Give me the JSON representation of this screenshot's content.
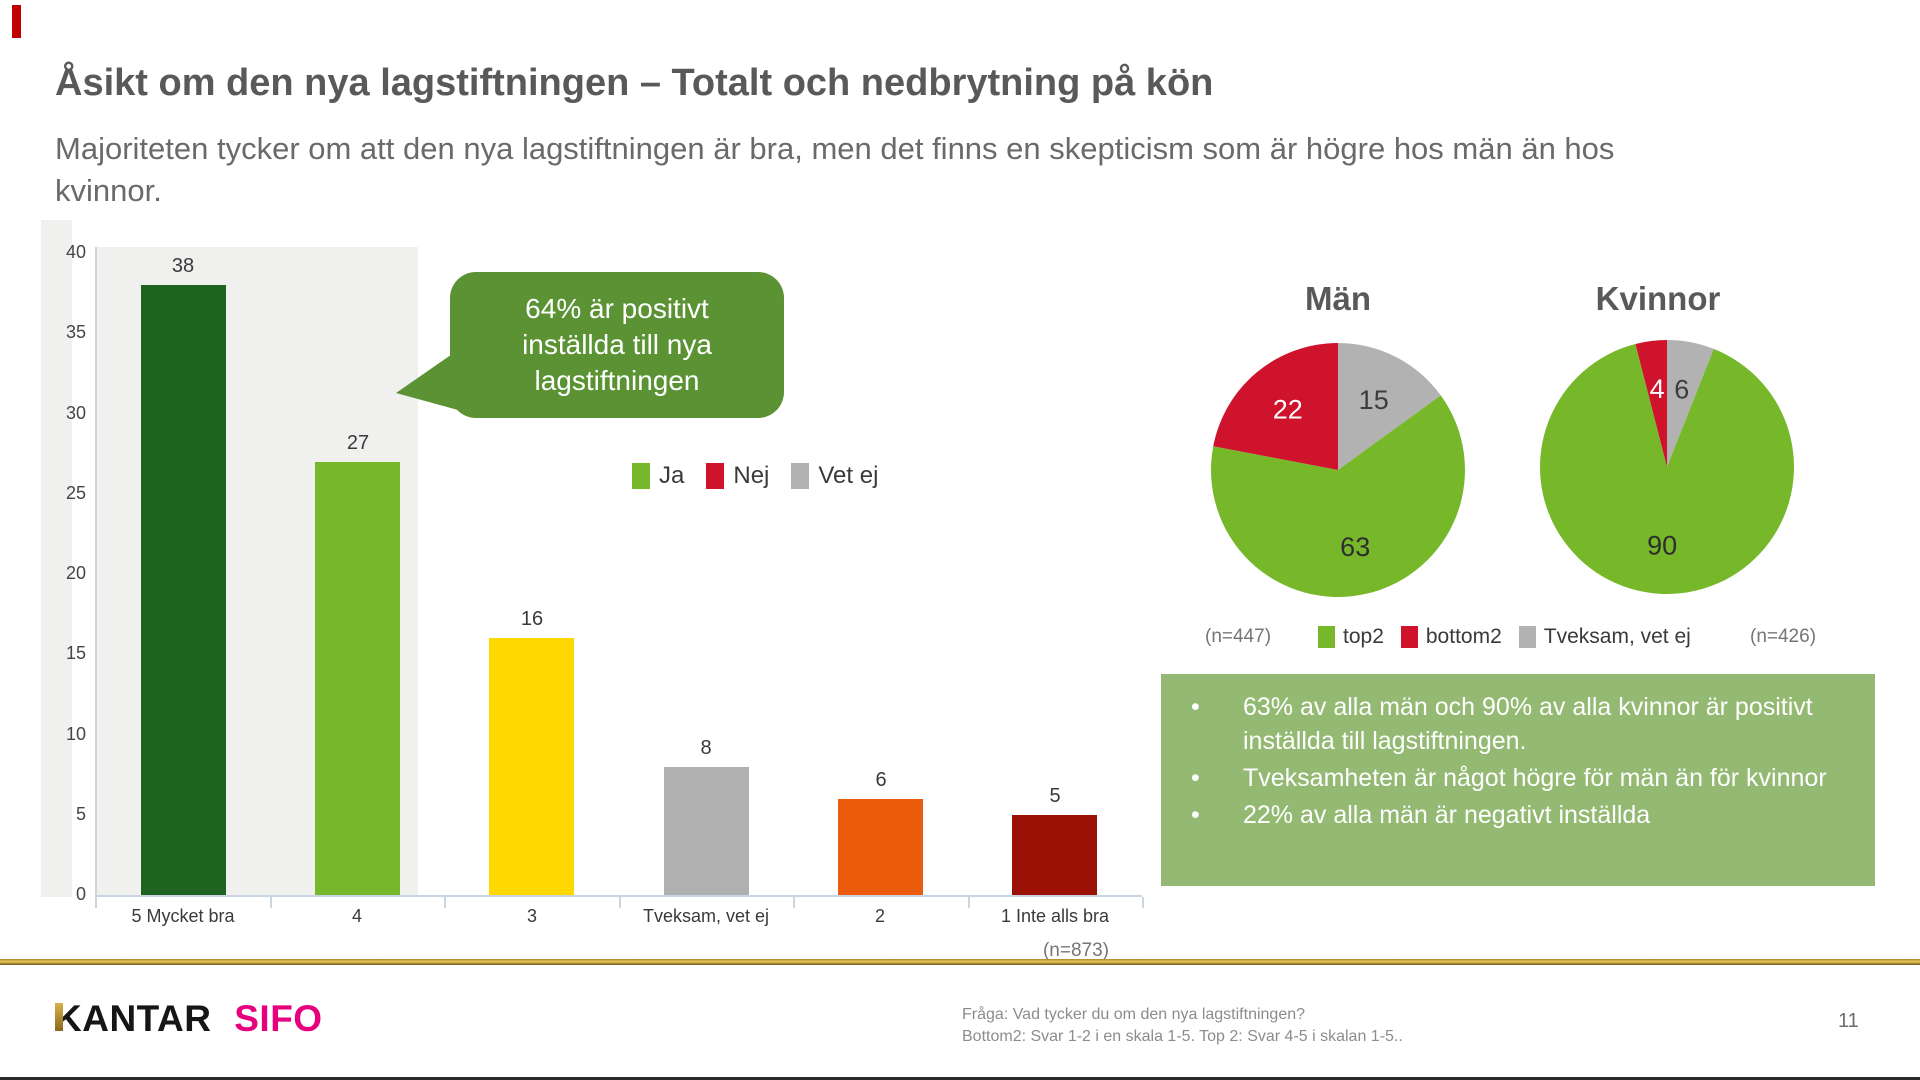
{
  "slide": {
    "title": "Åsikt om den nya lagstiftningen – Totalt och nedbrytning på kön",
    "subtitle": "Majoriteten tycker om att den nya lagstiftningen är bra, men det finns en skepticism som är högre hos män än hos kvinnor.",
    "page_number": "11",
    "footnote": {
      "line1": "Fråga: Vad tycker du om den nya lagstiftningen?",
      "line2": "Bottom2: Svar 1-2 i en skala 1-5. Top 2: Svar 4-5 i skalan 1-5.."
    },
    "logo": {
      "kantar": "KANTAR",
      "sifo": "SIFO"
    }
  },
  "callout": {
    "text": "64% är positivt inställda till nya lagstiftningen",
    "color": "#5b9334",
    "text_color": "#ffffff"
  },
  "insight_box": {
    "bg": "#93b973",
    "bullets": [
      "63% av alla män och 90% av alla kvinnor är positivt inställda till lagstiftningen.",
      "Tveksamheten är något högre för män än för kvinnor",
      "22% av alla män är negativt inställda"
    ]
  },
  "bar_legend": [
    {
      "label": "Ja",
      "color": "#76b82a"
    },
    {
      "label": "Nej",
      "color": "#d0132d"
    },
    {
      "label": "Vet ej",
      "color": "#b2b2b2"
    }
  ],
  "pie_legend": [
    {
      "label": "top2",
      "color": "#76b82a"
    },
    {
      "label": "bottom2",
      "color": "#d0132d"
    },
    {
      "label": "Tveksam, vet ej",
      "color": "#b2b2b2"
    }
  ],
  "chart_data": [
    {
      "type": "bar",
      "title": "Åsikt om den nya lagstiftningen - Totalt",
      "categories": [
        "5 Mycket bra",
        "4",
        "3",
        "Tveksam, vet ej",
        "2",
        "1 Inte alls bra"
      ],
      "values": [
        38,
        27,
        16,
        8,
        6,
        5
      ],
      "colors": [
        "#1f6321",
        "#76b82a",
        "#ffd800",
        "#b0b0b0",
        "#ea5b0c",
        "#9c1105"
      ],
      "ylim": [
        0,
        40
      ],
      "yticks": [
        0,
        5,
        10,
        15,
        20,
        25,
        30,
        35,
        40
      ],
      "grid": false,
      "legend_position": "center-right",
      "plot_bg": "#f0f0ef",
      "sample": "(n=873)"
    },
    {
      "type": "pie",
      "title": "Män",
      "sample": "(n=447)",
      "slices": [
        {
          "label": "Tveksam, vet ej",
          "value": 15,
          "color": "#b2b2b2",
          "text_color": "#3d3d3d"
        },
        {
          "label": "top2",
          "value": 63,
          "color": "#76b82a",
          "text_color": "#2e2e2e"
        },
        {
          "label": "bottom2",
          "value": 22,
          "color": "#d0132d",
          "text_color": "#ffffff"
        }
      ]
    },
    {
      "type": "pie",
      "title": "Kvinnor",
      "sample": "(n=426)",
      "slices": [
        {
          "label": "Tveksam, vet ej",
          "value": 6,
          "color": "#b2b2b2",
          "text_color": "#3d3d3d"
        },
        {
          "label": "top2",
          "value": 90,
          "color": "#76b82a",
          "text_color": "#2e2e2e"
        },
        {
          "label": "bottom2",
          "value": 4,
          "color": "#d0132d",
          "text_color": "#ffffff"
        }
      ]
    }
  ]
}
